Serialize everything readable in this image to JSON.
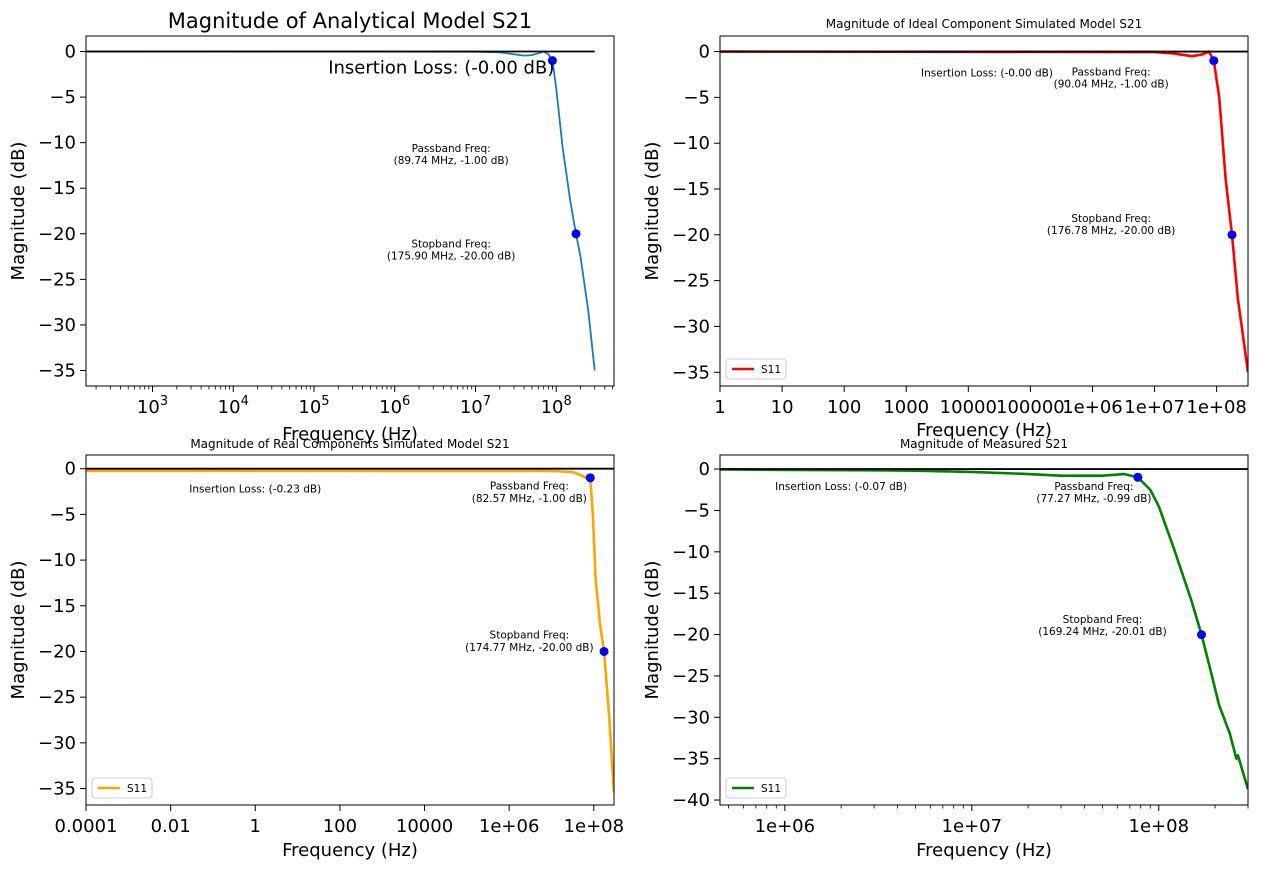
{
  "chart_data": [
    {
      "type": "line",
      "title": "Magnitude of Analytical Model S21",
      "xlabel": "Frequency (Hz)",
      "ylabel": "Magnitude (dB)",
      "xscale": "log",
      "xlim": [
        150,
        520000000
      ],
      "ylim": [
        -36.7,
        1.7
      ],
      "xticks": [
        1000,
        10000,
        100000,
        1000000,
        10000000,
        100000000
      ],
      "xtick_labels": [
        "10^3",
        "10^4",
        "10^5",
        "10^6",
        "10^7",
        "10^8"
      ],
      "yticks": [
        0,
        -5,
        -10,
        -15,
        -20,
        -25,
        -30,
        -35
      ],
      "ytick_labels": [
        "0",
        "−5",
        "−10",
        "−15",
        "−20",
        "−25",
        "−30",
        "−35"
      ],
      "legend": null,
      "series": [
        {
          "color": "#1f77b4",
          "points": [
            [
              150,
              0
            ],
            [
              10000000,
              -0.02
            ],
            [
              20000000,
              -0.1
            ],
            [
              30000000,
              -0.3
            ],
            [
              40000000,
              -0.45
            ],
            [
              50000000,
              -0.4
            ],
            [
              60000000,
              -0.2
            ],
            [
              70000000,
              0.0
            ],
            [
              80000000,
              -0.3
            ],
            [
              89740000,
              -1.0
            ],
            [
              100000000,
              -4.0
            ],
            [
              120000000,
              -10.5
            ],
            [
              150000000,
              -16.5
            ],
            [
              175900000,
              -20.0
            ],
            [
              200000000,
              -22.5
            ],
            [
              250000000,
              -28.5
            ],
            [
              300000000,
              -35.0
            ]
          ]
        }
      ],
      "reference_line": {
        "y": 0,
        "x_from": 150,
        "x_to": 300000000,
        "color": "#000000"
      },
      "markers": [
        [
          89740000,
          -1.0
        ],
        [
          175900000,
          -20.0
        ]
      ],
      "annotations": [
        {
          "text": "Insertion Loss: (-0.00 dB)",
          "x": 150000,
          "y": -2.4
        },
        {
          "text": "Passband Freq:\n(89.74 MHz, -1.00 dB)",
          "x": 5000000,
          "y": -11
        },
        {
          "text": "Stopband Freq:\n(175.90 MHz, -20.00 dB)",
          "x": 5000000,
          "y": -21.5
        }
      ]
    },
    {
      "type": "line",
      "title": "Magnitude of Ideal Component Simulated Model S21",
      "xlabel": "Frequency (Hz)",
      "ylabel": "Magnitude (dB)",
      "xscale": "log",
      "xlim": [
        1,
        320000000
      ],
      "ylim": [
        -36.5,
        1.7
      ],
      "xticks": [
        1,
        10,
        100,
        1000,
        10000,
        100000,
        1000000,
        10000000,
        100000000
      ],
      "xtick_labels": [
        "1",
        "10",
        "100",
        "1000",
        "10000",
        "100000",
        "1e+06",
        "1e+07",
        "1e+08"
      ],
      "yticks": [
        0,
        -5,
        -10,
        -15,
        -20,
        -25,
        -30,
        -35
      ],
      "ytick_labels": [
        "0",
        "−5",
        "−10",
        "−15",
        "−20",
        "−25",
        "−30",
        "−35"
      ],
      "legend": {
        "position": "lower-left",
        "labels": [
          "S11"
        ]
      },
      "series": [
        {
          "name": "S11",
          "color": "#ff0000",
          "points": [
            [
              1,
              0
            ],
            [
              10000000,
              -0.05
            ],
            [
              20000000,
              -0.2
            ],
            [
              40000000,
              -0.5
            ],
            [
              60000000,
              -0.3
            ],
            [
              75000000,
              0.0
            ],
            [
              90040000,
              -1.0
            ],
            [
              110000000,
              -5.0
            ],
            [
              140000000,
              -14.0
            ],
            [
              176780000,
              -20.0
            ],
            [
              220000000,
              -27.0
            ],
            [
              320000000,
              -35.0
            ]
          ]
        }
      ],
      "reference_line": {
        "y": 0,
        "x_from": 1,
        "x_to": 320000000,
        "color": "#000000"
      },
      "markers": [
        [
          90040000,
          -1.0
        ],
        [
          176780000,
          -20.0
        ]
      ],
      "annotations": [
        {
          "text": "Insertion Loss: (-0.00 dB)",
          "x": 20000,
          "y": -2.7
        },
        {
          "text": "Passband Freq:\n(90.04 MHz, -1.00 dB)",
          "x": 2000000,
          "y": -2.6
        },
        {
          "text": "Stopband Freq:\n(176.78 MHz, -20.00 dB)",
          "x": 2000000,
          "y": -18.6
        }
      ]
    },
    {
      "type": "line",
      "title": "Magnitude of Real Components Simulated Model S21",
      "xlabel": "Frequency (Hz)",
      "ylabel": "Magnitude (dB)",
      "xscale": "log",
      "xlim": [
        0.0001,
        300000000
      ],
      "ylim": [
        -36.8,
        1.5
      ],
      "xticks": [
        0.0001,
        0.01,
        1,
        100,
        10000,
        1000000,
        100000000
      ],
      "xtick_labels": [
        "0.0001",
        "0.01",
        "1",
        "100",
        "10000",
        "1e+06",
        "1e+08"
      ],
      "yticks": [
        0,
        -5,
        -10,
        -15,
        -20,
        -25,
        -30,
        -35
      ],
      "ytick_labels": [
        "0",
        "−5",
        "−10",
        "−15",
        "−20",
        "−25",
        "−30",
        "−35"
      ],
      "legend": {
        "position": "lower-left",
        "labels": [
          "S11"
        ]
      },
      "series": [
        {
          "name": "S11",
          "color": "#ffa500",
          "points": [
            [
              0.0001,
              -0.23
            ],
            [
              10000000,
              -0.25
            ],
            [
              30000000,
              -0.35
            ],
            [
              50000000,
              -0.7
            ],
            [
              65000000,
              -1.0
            ],
            [
              75000000,
              -0.7
            ],
            [
              82570000,
              -1.0
            ],
            [
              95000000,
              -5.0
            ],
            [
              110000000,
              -12.0
            ],
            [
              140000000,
              -17.0
            ],
            [
              174770000,
              -20.0
            ],
            [
              230000000,
              -27.0
            ],
            [
              300000000,
              -35.5
            ]
          ]
        }
      ],
      "reference_line": {
        "y": 0,
        "x_from": 0.0001,
        "x_to": 300000000,
        "color": "#000000"
      },
      "markers": [
        [
          82570000,
          -1.0
        ],
        [
          174770000,
          -20.0
        ]
      ],
      "annotations": [
        {
          "text": "Insertion Loss: (-0.23 dB)",
          "x": 1,
          "y": -2.6
        },
        {
          "text": "Passband Freq:\n(82.57 MHz, -1.00 dB)",
          "x": 3000000,
          "y": -2.3
        },
        {
          "text": "Stopband Freq:\n(174.77 MHz, -20.00 dB)",
          "x": 3000000,
          "y": -18.6
        }
      ]
    },
    {
      "type": "line",
      "title": "Magnitude of Measured S21",
      "xlabel": "Frequency (Hz)",
      "ylabel": "Magnitude (dB)",
      "xscale": "log",
      "xlim": [
        450000,
        300000000
      ],
      "ylim": [
        -40.6,
        1.7
      ],
      "xticks": [
        1000000,
        10000000,
        100000000
      ],
      "xtick_labels": [
        "1e+06",
        "1e+07",
        "1e+08"
      ],
      "yticks": [
        0,
        -5,
        -10,
        -15,
        -20,
        -25,
        -30,
        -35,
        -40
      ],
      "ytick_labels": [
        "0",
        "−5",
        "−10",
        "−15",
        "−20",
        "−25",
        "−30",
        "−35",
        "−40"
      ],
      "legend": {
        "position": "lower-left",
        "labels": [
          "S11"
        ]
      },
      "series": [
        {
          "name": "S11",
          "color": "#008000",
          "points": [
            [
              450000,
              -0.05
            ],
            [
              1000000,
              -0.1
            ],
            [
              3000000,
              -0.15
            ],
            [
              5000000,
              -0.2
            ],
            [
              10000000,
              -0.35
            ],
            [
              20000000,
              -0.6
            ],
            [
              30000000,
              -0.8
            ],
            [
              50000000,
              -0.8
            ],
            [
              65000000,
              -0.6
            ],
            [
              77270000,
              -0.99
            ],
            [
              90000000,
              -2.5
            ],
            [
              100000000,
              -4.5
            ],
            [
              120000000,
              -9.5
            ],
            [
              150000000,
              -16.0
            ],
            [
              169240000,
              -20.01
            ],
            [
              190000000,
              -24.5
            ],
            [
              210000000,
              -28.5
            ],
            [
              240000000,
              -32.0
            ],
            [
              260000000,
              -35.0
            ],
            [
              265000000,
              -34.6
            ],
            [
              270000000,
              -35.2
            ],
            [
              285000000,
              -37.0
            ],
            [
              300000000,
              -38.7
            ]
          ]
        }
      ],
      "reference_line": {
        "y": 0,
        "x_from": 450000,
        "x_to": 300000000,
        "color": "#000000"
      },
      "markers": [
        [
          77270000,
          -0.99
        ],
        [
          169240000,
          -20.01
        ]
      ],
      "annotations": [
        {
          "text": "Insertion Loss: (-0.07 dB)",
          "x": 2000000,
          "y": -2.5
        },
        {
          "text": "Passband Freq:\n(77.27 MHz, -0.99 dB)",
          "x": 45000000,
          "y": -2.5
        },
        {
          "text": "Stopband Freq:\n(169.24 MHz, -20.01 dB)",
          "x": 50000000,
          "y": -18.6
        }
      ]
    }
  ]
}
